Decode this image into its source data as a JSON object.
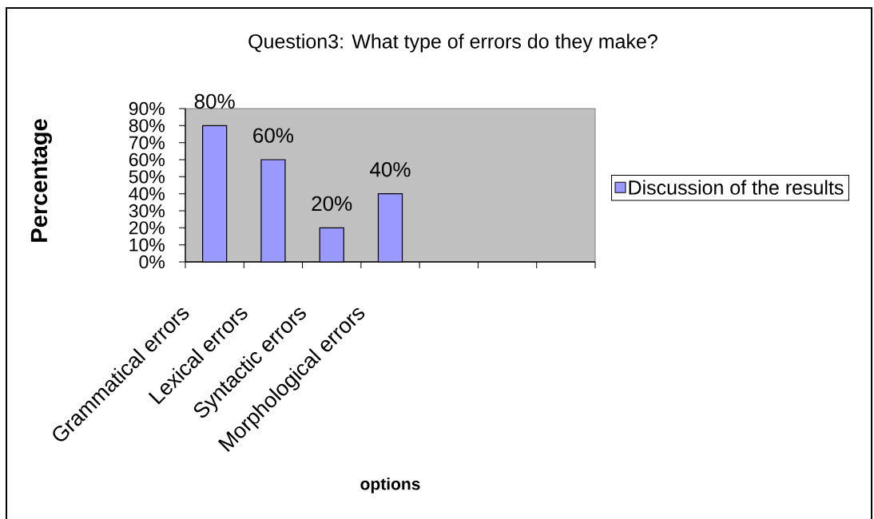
{
  "chart_data": {
    "type": "bar",
    "title": "Question3: What type of errors do they make?",
    "xlabel": "options",
    "ylabel": "Percentage",
    "categories": [
      "Grammatical errors",
      "Lexical errors",
      "Syntactic errors",
      "Morphological errors",
      null,
      null,
      null
    ],
    "series": [
      {
        "name": "Discussion of the results",
        "color": "#9999ff",
        "values": [
          80,
          60,
          20,
          40,
          null,
          null,
          null
        ],
        "value_labels": [
          "80%",
          "60%",
          "20%",
          "40%",
          null,
          null,
          null
        ]
      }
    ],
    "ylim": [
      0,
      90
    ],
    "yticks": [
      {
        "value": 0,
        "label": "0%"
      },
      {
        "value": 10,
        "label": "10%"
      },
      {
        "value": 20,
        "label": "20%"
      },
      {
        "value": 30,
        "label": "30%"
      },
      {
        "value": 40,
        "label": "40%"
      },
      {
        "value": 50,
        "label": "50%"
      },
      {
        "value": 60,
        "label": "60%"
      },
      {
        "value": 70,
        "label": "70%"
      },
      {
        "value": 80,
        "label": "80%"
      },
      {
        "value": 90,
        "label": "90%"
      }
    ],
    "legend": "right"
  }
}
